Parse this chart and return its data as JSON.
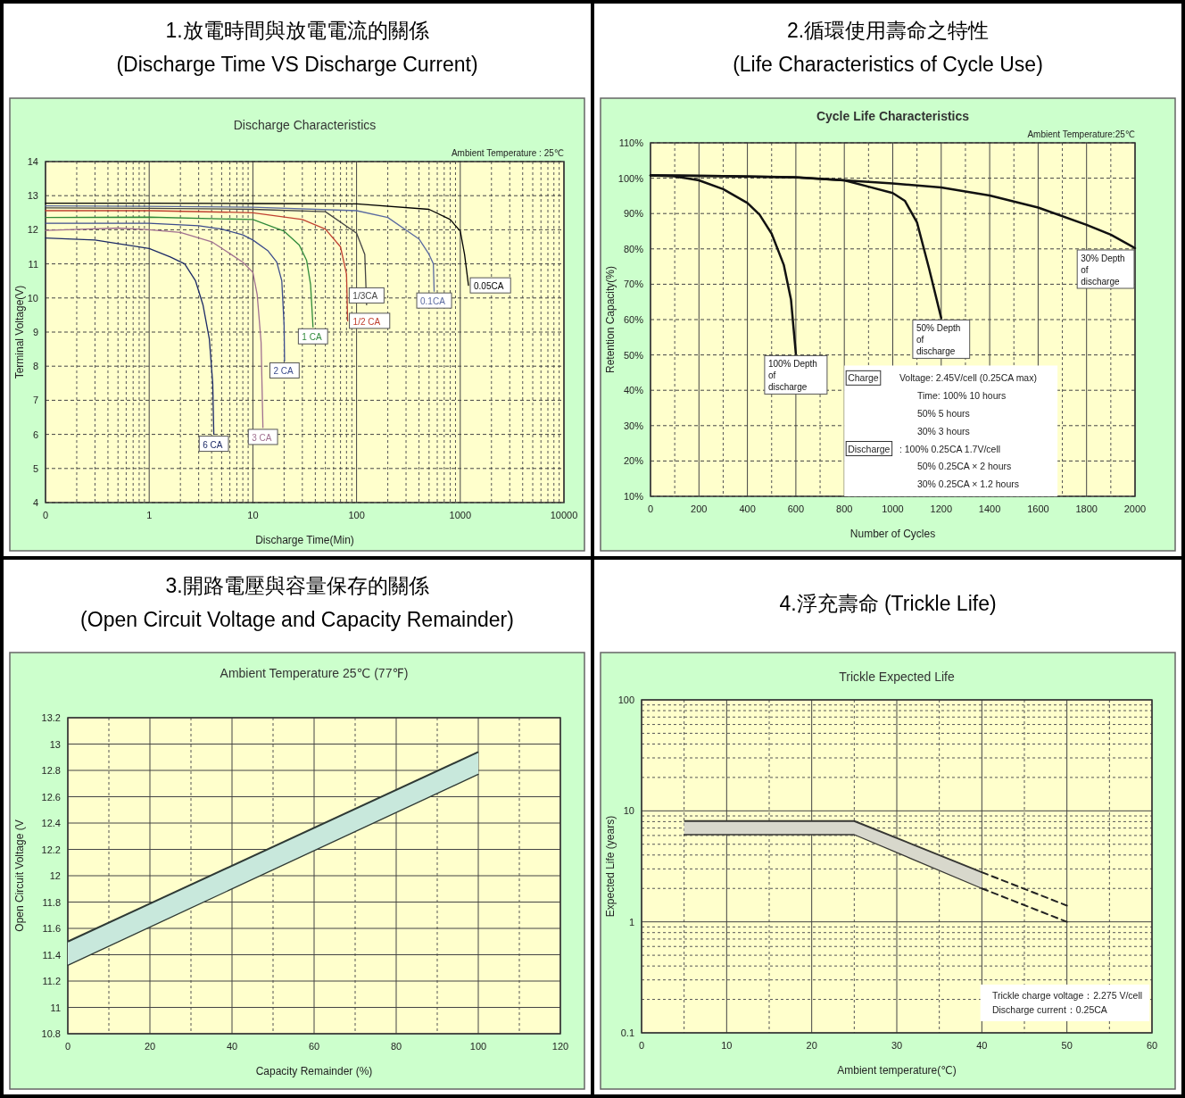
{
  "chart_data": [
    {
      "type": "line",
      "title": "1.放電時間與放電電流的關係",
      "subtitle": "(Discharge Time VS Discharge Current)",
      "xlabel": "Discharge Time(Min)",
      "ylabel": "Terminal Voltage(V)",
      "annotations": [
        "Discharge Characteristics",
        "Ambient Temperature : 25℃"
      ],
      "log": "x",
      "grid": true,
      "xlim": [
        0.1,
        10000
      ],
      "xticks": [
        {
          "value": 0.1,
          "label": "0"
        },
        1,
        10,
        100,
        1000,
        10000
      ],
      "ylim": [
        4,
        14
      ],
      "yticks": [
        4,
        5,
        6,
        7,
        8,
        9,
        10,
        11,
        12,
        13,
        14
      ],
      "series": [
        {
          "name": "6 CA",
          "color": "#1c2a66",
          "x": [
            0.1,
            0.3,
            1,
            1.6,
            2.2,
            2.8,
            3.3,
            3.8,
            4.1,
            4.2
          ],
          "values": [
            11.76,
            11.7,
            11.45,
            11.2,
            11.0,
            10.5,
            9.8,
            8.8,
            7.5,
            6.0
          ]
        },
        {
          "name": "3 CA",
          "color": "#a07090",
          "x": [
            0.1,
            0.5,
            1,
            2,
            4,
            6,
            8,
            10,
            11,
            12,
            12.5
          ],
          "values": [
            11.98,
            12.05,
            12.0,
            11.92,
            11.65,
            11.3,
            11.05,
            10.75,
            10.1,
            8.7,
            6.2
          ]
        },
        {
          "name": "2 CA",
          "color": "#3c4c8c",
          "x": [
            0.1,
            1,
            3,
            5,
            8,
            10,
            14,
            17,
            19,
            20,
            20.2
          ],
          "values": [
            12.19,
            12.19,
            12.12,
            12.02,
            11.85,
            11.7,
            11.38,
            11.05,
            10.5,
            9.2,
            8.15
          ]
        },
        {
          "name": "1 CA",
          "color": "#2f8a3a",
          "x": [
            0.1,
            1,
            10,
            20,
            28,
            33,
            36,
            38
          ],
          "values": [
            12.36,
            12.37,
            12.3,
            11.96,
            11.55,
            11.1,
            10.4,
            9.15
          ]
        },
        {
          "name": "1/2 CA",
          "color": "#c04030",
          "x": [
            0.1,
            1,
            10,
            30,
            50,
            70,
            80,
            82
          ],
          "values": [
            12.56,
            12.56,
            12.5,
            12.3,
            12.02,
            11.5,
            10.7,
            9.33
          ]
        },
        {
          "name": "1/3CA",
          "color": "#444444",
          "x": [
            0.1,
            1,
            10,
            50,
            100,
            120,
            125
          ],
          "values": [
            12.64,
            12.63,
            12.6,
            12.53,
            11.9,
            11.28,
            9.8
          ]
        },
        {
          "name": "0.1CA",
          "color": "#5a6aa0",
          "x": [
            0.1,
            1,
            10,
            100,
            200,
            400,
            500,
            550,
            560
          ],
          "values": [
            12.7,
            12.69,
            12.66,
            12.56,
            12.36,
            11.73,
            11.28,
            11.0,
            10.2
          ]
        },
        {
          "name": "0.05CA",
          "color": "#000000",
          "x": [
            0.1,
            1,
            10,
            100,
            500,
            800,
            1000,
            1100,
            1200
          ],
          "values": [
            12.78,
            12.78,
            12.77,
            12.76,
            12.6,
            12.3,
            11.96,
            11.28,
            10.37
          ]
        }
      ]
    },
    {
      "type": "line",
      "title": "2.循環使用壽命之特性",
      "subtitle": "(Life Characteristics of Cycle Use)",
      "xlabel": "Number of Cycles",
      "ylabel": "Retention Capacity(%)",
      "annotations": [
        "Cycle Life Characteristics",
        "Ambient Temperature:25℃",
        "Charge",
        "Voltage: 2.45V/cell (0.25CA max)",
        "Time: 100%   10 hours",
        "50%    5 hours",
        "30%    3 hours",
        "Discharge",
        ": 100%   0.25CA 1.7V/cell",
        "50%   0.25CA × 2 hours",
        "30%   0.25CA × 1.2 hours"
      ],
      "grid": true,
      "xlim": [
        0,
        2000
      ],
      "xticks": [
        0,
        200,
        400,
        600,
        800,
        1000,
        1200,
        1400,
        1600,
        1800,
        2000
      ],
      "ylim": [
        10,
        110
      ],
      "yticks": [
        {
          "value": 10,
          "label": "10%"
        },
        {
          "value": 20,
          "label": "20%"
        },
        {
          "value": 30,
          "label": "30%"
        },
        {
          "value": 40,
          "label": "40%"
        },
        {
          "value": 50,
          "label": "50%"
        },
        {
          "value": 60,
          "label": "60%"
        },
        {
          "value": 70,
          "label": "70%"
        },
        {
          "value": 80,
          "label": "80%"
        },
        {
          "value": 90,
          "label": "90%"
        },
        {
          "value": 100,
          "label": "100%"
        },
        {
          "value": 110,
          "label": "110%"
        }
      ],
      "series": [
        {
          "name": "100% Depth of discharge",
          "color": "#111111",
          "x": [
            0,
            100,
            200,
            300,
            400,
            450,
            500,
            550,
            580,
            600
          ],
          "values": [
            100.8,
            100.5,
            99.4,
            96.9,
            93.0,
            89.7,
            84.3,
            75.5,
            65.6,
            50.3
          ]
        },
        {
          "name": "50% Depth of discharge",
          "color": "#111111",
          "x": [
            0,
            300,
            600,
            800,
            900,
            1000,
            1050,
            1100,
            1150,
            1200
          ],
          "values": [
            100.8,
            100.6,
            100.2,
            99.4,
            97.6,
            95.8,
            93.6,
            87.5,
            74.4,
            60.4
          ]
        },
        {
          "name": "30% Depth of discharge",
          "color": "#111111",
          "x": [
            0,
            300,
            600,
            800,
            1000,
            1200,
            1400,
            1600,
            1800,
            1900,
            2000
          ],
          "values": [
            100.8,
            100.6,
            100.3,
            99.4,
            98.5,
            97.4,
            95.1,
            91.7,
            86.8,
            84.0,
            80.2
          ]
        }
      ]
    },
    {
      "type": "line",
      "title": "3.開路電壓與容量保存的關係",
      "subtitle": "(Open Circuit Voltage and Capacity Remainder)",
      "xlabel": "Capacity Remainder (%)",
      "ylabel": "Open Circuit Voltage (V",
      "annotations": [
        "Ambient Temperature 25℃ (77℉)"
      ],
      "grid": true,
      "xlim": [
        0,
        120
      ],
      "xticks": [
        0,
        20,
        40,
        60,
        80,
        100,
        120
      ],
      "ylim": [
        10.8,
        13.2
      ],
      "yticks": [
        10.8,
        11,
        11.2,
        11.4,
        11.6,
        11.8,
        12,
        12.2,
        12.4,
        12.6,
        12.8,
        13,
        13.2
      ],
      "series": [
        {
          "color": "#2f3a35",
          "x": [
            0,
            100
          ],
          "values": [
            11.5,
            12.94
          ],
          "lower": [
            11.32,
            12.77
          ],
          "upper": [
            11.5,
            12.94
          ]
        },
        {
          "color": "#2f3a35",
          "x": [
            0,
            100
          ],
          "values": [
            11.32,
            12.77
          ]
        }
      ]
    },
    {
      "type": "line",
      "title": "4.浮充壽命 (Trickle Life)",
      "xlabel": "Ambient temperature(℃)",
      "ylabel": "Expected Life (years)",
      "annotations": [
        "Trickle Expected Life",
        "Trickle charge voltage：2.275 V/cell",
        "Discharge current：0.25CA"
      ],
      "log": "y",
      "grid": true,
      "xlim": [
        0,
        60
      ],
      "xticks": [
        0,
        10,
        20,
        30,
        40,
        50,
        60
      ],
      "ylim": [
        0.1,
        100
      ],
      "yticks": [
        0.1,
        1,
        10,
        100
      ],
      "series": [
        {
          "color": "#363633",
          "x": [
            5,
            25,
            40
          ],
          "values": [
            8.1,
            8.1,
            2.8
          ],
          "lower": [
            6.1,
            6.1,
            2.0
          ],
          "upper": [
            8.1,
            8.1,
            2.8
          ]
        },
        {
          "color": "#363633",
          "x": [
            5,
            25,
            40
          ],
          "values": [
            6.1,
            6.1,
            2.0
          ]
        },
        {
          "color": "#222222",
          "line_style": "dashed",
          "x": [
            40,
            50
          ],
          "values": [
            2.8,
            1.4
          ]
        },
        {
          "color": "#222222",
          "line_style": "dashed",
          "x": [
            40,
            50
          ],
          "values": [
            2.0,
            1.0
          ]
        }
      ]
    }
  ]
}
